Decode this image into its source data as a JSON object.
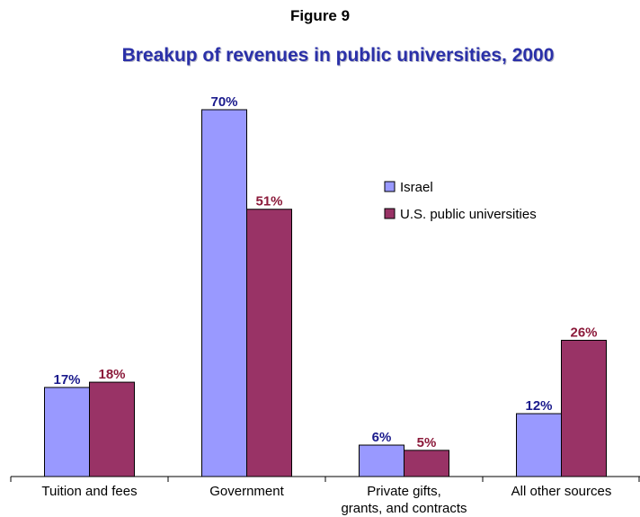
{
  "figure_label": "Figure 9",
  "chart_data": {
    "type": "bar",
    "title": "Breakup of revenues in public universities, 2000",
    "categories": [
      "Tuition and fees",
      "Government",
      "Private gifts, grants, and contracts",
      "All other sources"
    ],
    "category_lines": [
      [
        "Tuition and fees"
      ],
      [
        "Government"
      ],
      [
        "Private gifts,",
        "grants, and contracts"
      ],
      [
        "All other sources"
      ]
    ],
    "series": [
      {
        "name": "Israel",
        "values": [
          17,
          70,
          6,
          12
        ],
        "labels": [
          "17%",
          "70%",
          "6%",
          "12%"
        ],
        "color": "#9999ff",
        "label_color": "#1a1a8c"
      },
      {
        "name": "U.S. public universities",
        "values": [
          18,
          51,
          5,
          26
        ],
        "labels": [
          "18%",
          "51%",
          "5%",
          "26%"
        ],
        "color": "#993366",
        "label_color": "#8b1a3a"
      }
    ],
    "ylim": [
      0,
      70
    ],
    "legend_position": "right",
    "grid": false
  }
}
